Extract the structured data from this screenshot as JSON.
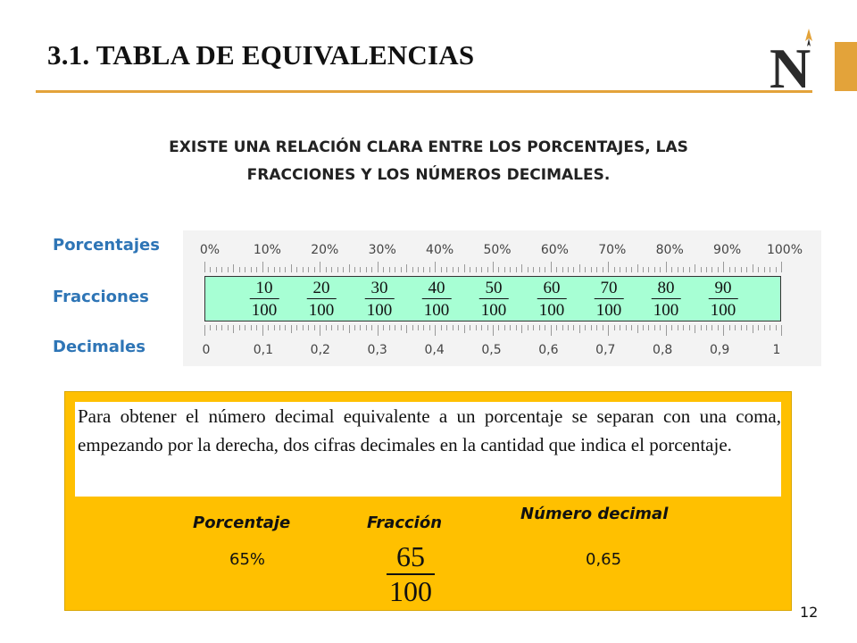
{
  "header": {
    "title": "3.1. TABLA DE EQUIVALENCIAS",
    "accent_color": "#e3a33a"
  },
  "logo": {
    "icon": "n-compass-logo"
  },
  "subtitle": {
    "line1": "EXISTE UNA RELACIÓN CLARA ENTRE LOS PORCENTAJES, LAS",
    "line2": "FRACCIONES Y LOS NÚMEROS DECIMALES."
  },
  "scale": {
    "row_labels": {
      "percentages": "Porcentajes",
      "fractions": "Fracciones",
      "decimals": "Decimales"
    },
    "percent_labels": [
      "0%",
      "10%",
      "20%",
      "30%",
      "40%",
      "50%",
      "60%",
      "70%",
      "80%",
      "90%",
      "100%"
    ],
    "fractions": [
      {
        "numerator": "10",
        "denominator": "100"
      },
      {
        "numerator": "20",
        "denominator": "100"
      },
      {
        "numerator": "30",
        "denominator": "100"
      },
      {
        "numerator": "40",
        "denominator": "100"
      },
      {
        "numerator": "50",
        "denominator": "100"
      },
      {
        "numerator": "60",
        "denominator": "100"
      },
      {
        "numerator": "70",
        "denominator": "100"
      },
      {
        "numerator": "80",
        "denominator": "100"
      },
      {
        "numerator": "90",
        "denominator": "100"
      }
    ],
    "decimal_labels": [
      "0",
      "0,1",
      "0,2",
      "0,3",
      "0,4",
      "0,5",
      "0,6",
      "0,7",
      "0,8",
      "0,9",
      "1"
    ],
    "label_color": "#2e75b6",
    "fraction_band_color": "#a7ffd4"
  },
  "explanation": {
    "text": "Para obtener el número decimal equivalente a un porcentaje se separan con una coma, empezando por la derecha, dos cifras decimales en la cantidad que indica el porcentaje.",
    "panel_color": "#ffc000"
  },
  "example": {
    "headers": {
      "percentage": "Porcentaje",
      "fraction": "Fracción",
      "decimal": "Número decimal"
    },
    "percentage_value": "65%",
    "fraction_numerator": "65",
    "fraction_denominator": "100",
    "decimal_value": "0,65"
  },
  "page_number": "12"
}
